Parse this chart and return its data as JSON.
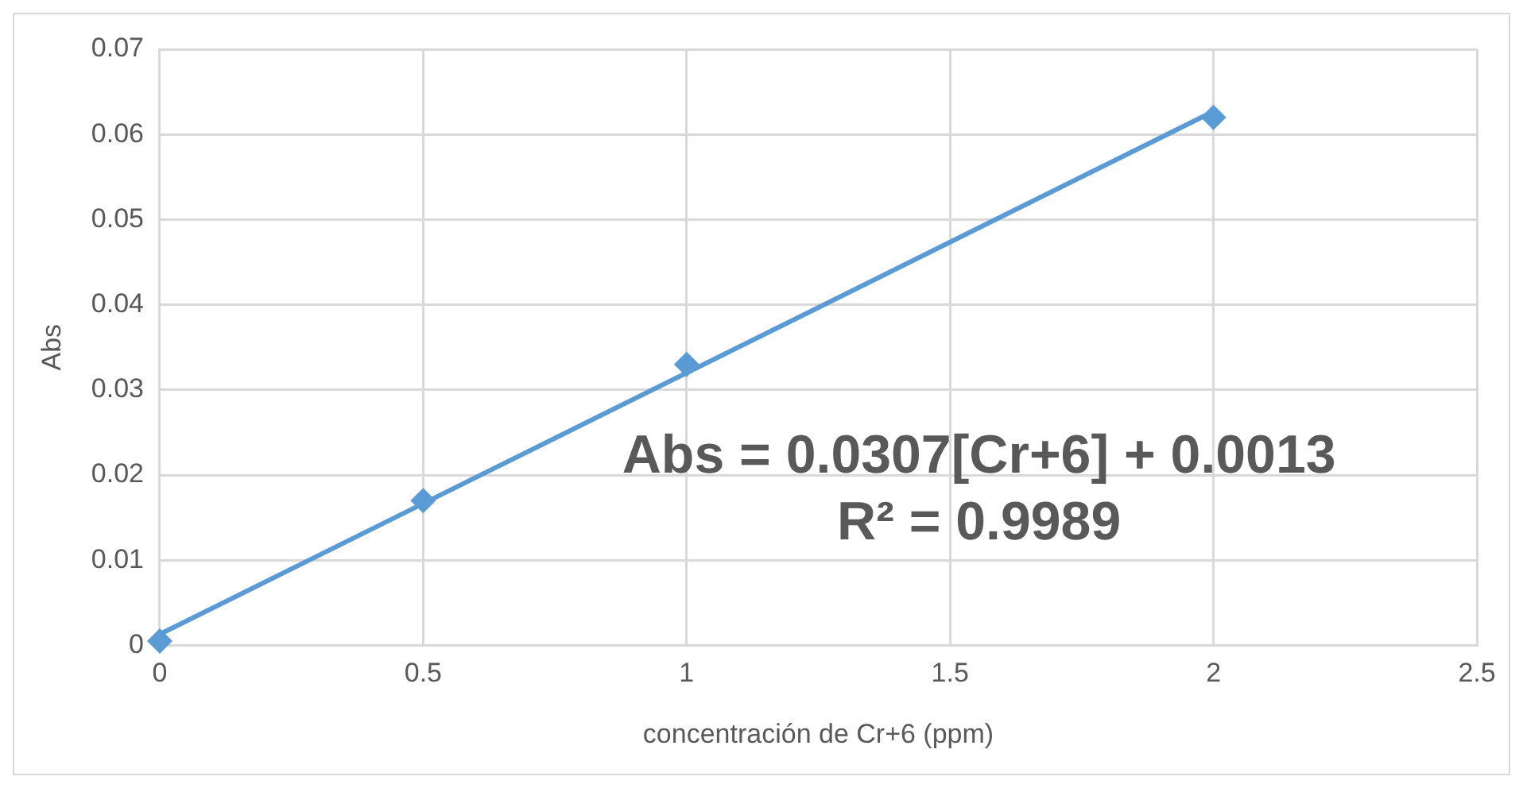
{
  "chart_data": {
    "type": "scatter",
    "xlabel": "concentración de Cr+6 (ppm)",
    "ylabel": "Abs",
    "series": [
      {
        "type": "scatter",
        "color": "#5b9bd5",
        "x": [
          0,
          0.5,
          1,
          2
        ],
        "values": [
          0.0005,
          0.017,
          0.033,
          0.062
        ],
        "marker": "diamond"
      },
      {
        "type": "line",
        "color": "#5b9bd5",
        "x": [
          0,
          2
        ],
        "values": [
          0.0013,
          0.0627
        ],
        "marker": "none"
      }
    ],
    "xlim": [
      0,
      2.5
    ],
    "xticks": [
      0,
      0.5,
      1,
      1.5,
      2,
      2.5
    ],
    "ylim": [
      0,
      0.07
    ],
    "yticks": [
      0,
      0.01,
      0.02,
      0.03,
      0.04,
      0.05,
      0.06,
      0.07
    ],
    "grid": true,
    "legend": false,
    "annotations": [
      "Abs = 0.0307[Cr+6] + 0.0013",
      "R² = 0.9989"
    ]
  }
}
